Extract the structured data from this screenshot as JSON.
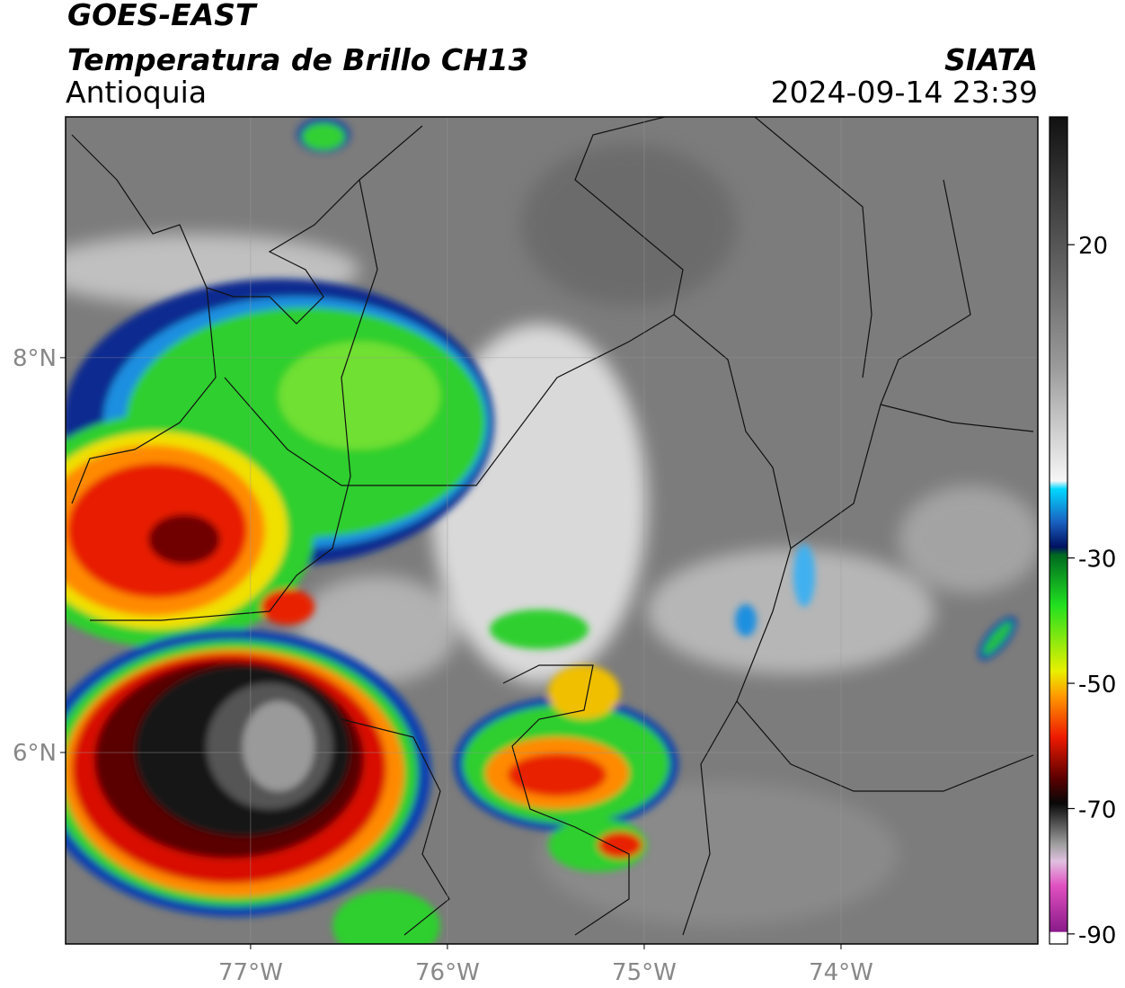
{
  "header": {
    "title": "GOES-EAST",
    "subtitle": "Temperatura de Brillo CH13",
    "region": "Antioquia",
    "source": "SIATA",
    "datetime": "2024-09-14 23:39"
  },
  "map": {
    "lonlim": [
      -77.94,
      -73.0
    ],
    "latlim": [
      5.03,
      9.22
    ],
    "lat_ticks": [
      {
        "value": 8,
        "label": "8°N"
      },
      {
        "value": 6,
        "label": "6°N"
      }
    ],
    "lon_ticks": [
      {
        "value": -77,
        "label": "77°W"
      },
      {
        "value": -76,
        "label": "76°W"
      },
      {
        "value": -75,
        "label": "75°W"
      },
      {
        "value": -74,
        "label": "74°W"
      }
    ]
  },
  "colorbar": {
    "lim": [
      -91.6,
      40.4
    ],
    "ticks": [
      20,
      -30,
      -50,
      -70,
      -90
    ]
  }
}
